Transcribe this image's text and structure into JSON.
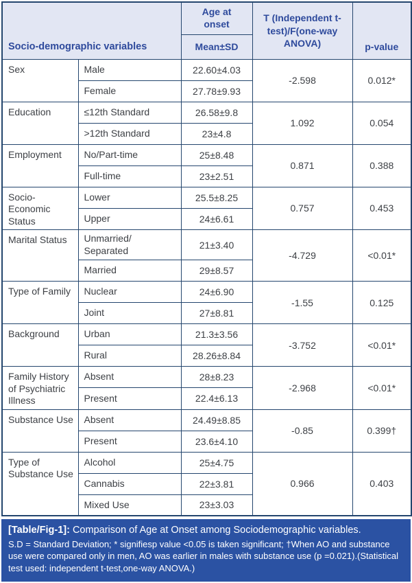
{
  "header": {
    "socio_col": "Socio-demographic variables",
    "age_at_onset": "Age at\nonset",
    "mean_sd": "Mean±SD",
    "statistic": "T (Independent t-test)/F(one-way ANOVA)",
    "p_value": "p-value"
  },
  "rows": [
    {
      "variable": "Sex",
      "levels": [
        {
          "label": "Male",
          "mean_sd": "22.60±4.03"
        },
        {
          "label": "Female",
          "mean_sd": "27.78±9.93"
        }
      ],
      "statistic": "-2.598",
      "p_value": "0.012*"
    },
    {
      "variable": "Education",
      "levels": [
        {
          "label": "≤12th Standard",
          "mean_sd": "26.58±9.8"
        },
        {
          "label": ">12th Standard",
          "mean_sd": "23±4.8"
        }
      ],
      "statistic": "1.092",
      "p_value": "0.054"
    },
    {
      "variable": "Employment",
      "levels": [
        {
          "label": "No/Part-time",
          "mean_sd": "25±8.48"
        },
        {
          "label": "Full-time",
          "mean_sd": "23±2.51"
        }
      ],
      "statistic": "0.871",
      "p_value": "0.388"
    },
    {
      "variable": "Socio-Economic Status",
      "levels": [
        {
          "label": "Lower",
          "mean_sd": "25.5±8.25"
        },
        {
          "label": "Upper",
          "mean_sd": "24±6.61"
        }
      ],
      "statistic": "0.757",
      "p_value": "0.453"
    },
    {
      "variable": "Marital Status",
      "levels": [
        {
          "label": "Unmarried/ Separated",
          "mean_sd": "21±3.40"
        },
        {
          "label": "Married",
          "mean_sd": "29±8.57"
        }
      ],
      "statistic": "-4.729",
      "p_value": "<0.01*"
    },
    {
      "variable": "Type of Family",
      "levels": [
        {
          "label": "Nuclear",
          "mean_sd": "24±6.90"
        },
        {
          "label": "Joint",
          "mean_sd": "27±8.81"
        }
      ],
      "statistic": "-1.55",
      "p_value": "0.125"
    },
    {
      "variable": "Background",
      "levels": [
        {
          "label": "Urban",
          "mean_sd": "21.3±3.56"
        },
        {
          "label": "Rural",
          "mean_sd": "28.26±8.84"
        }
      ],
      "statistic": "-3.752",
      "p_value": "<0.01*"
    },
    {
      "variable": "Family History of Psychiatric Illness",
      "levels": [
        {
          "label": "Absent",
          "mean_sd": "28±8.23"
        },
        {
          "label": "Present",
          "mean_sd": "22.4±6.13"
        }
      ],
      "statistic": "-2.968",
      "p_value": "<0.01*"
    },
    {
      "variable": "Substance Use",
      "levels": [
        {
          "label": "Absent",
          "mean_sd": "24.49±8.85"
        },
        {
          "label": "Present",
          "mean_sd": "23.6±4.10"
        }
      ],
      "statistic": "-0.85",
      "p_value": "0.399†"
    },
    {
      "variable": "Type of Substance Use",
      "levels": [
        {
          "label": "Alcohol",
          "mean_sd": "25±4.75"
        },
        {
          "label": "Cannabis",
          "mean_sd": "22±3.81"
        },
        {
          "label": "Mixed Use",
          "mean_sd": "23±3.03"
        }
      ],
      "statistic": "0.966",
      "p_value": "0.403"
    }
  ],
  "caption": {
    "label": "[Table/Fig-1]:",
    "title": "Comparison of Age at Onset among Sociodemographic variables.",
    "footnote": "S.D = Standard Deviation; * signifiesp value <0.05 is taken significant; †When AO and substance use were compared only in men, AO was earlier in males with substance use (p =0.021).(Statistical test used: independent t-test,one-way ANOVA.)"
  },
  "colors": {
    "header_bg": "#e2e6f3",
    "header_text": "#2e4a9c",
    "border": "#23456d",
    "caption_bg": "#2b52a3",
    "body_text": "#3d4045"
  }
}
